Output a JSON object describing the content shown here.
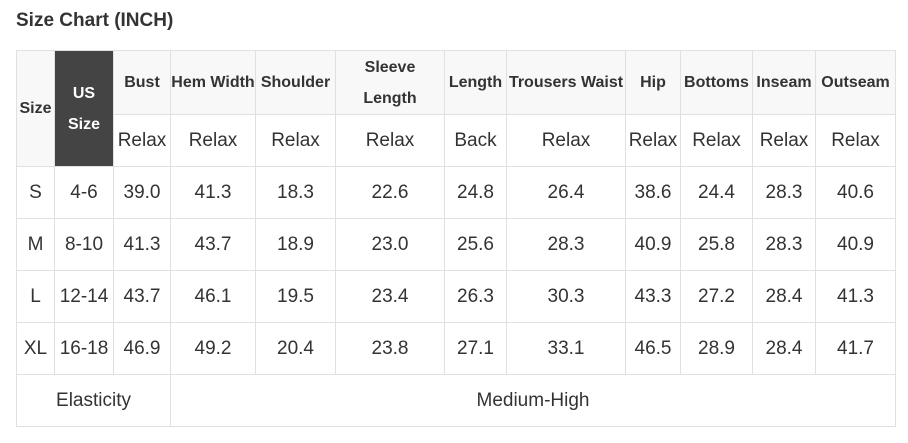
{
  "title": "Size Chart (INCH)",
  "headers": {
    "size": "Size",
    "us_size": "US Size",
    "cols": [
      "Bust",
      "Hem Width",
      "Shoulder",
      "Sleeve Length",
      "Length",
      "Trousers Waist",
      "Hip",
      "Bottoms",
      "Inseam",
      "Outseam"
    ]
  },
  "fit": [
    "Relax",
    "Relax",
    "Relax",
    "Relax",
    "Back",
    "Relax",
    "Relax",
    "Relax",
    "Relax",
    "Relax"
  ],
  "rows": [
    {
      "size": "S",
      "us": "4-6",
      "values": [
        "39.0",
        "41.3",
        "18.3",
        "22.6",
        "24.8",
        "26.4",
        "38.6",
        "24.4",
        "28.3",
        "40.6"
      ]
    },
    {
      "size": "M",
      "us": "8-10",
      "values": [
        "41.3",
        "43.7",
        "18.9",
        "23.0",
        "25.6",
        "28.3",
        "40.9",
        "25.8",
        "28.3",
        "40.9"
      ]
    },
    {
      "size": "L",
      "us": "12-14",
      "values": [
        "43.7",
        "46.1",
        "19.5",
        "23.4",
        "26.3",
        "30.3",
        "43.3",
        "27.2",
        "28.4",
        "41.3"
      ]
    },
    {
      "size": "XL",
      "us": "16-18",
      "values": [
        "46.9",
        "49.2",
        "20.4",
        "23.8",
        "27.1",
        "33.1",
        "46.5",
        "28.9",
        "28.4",
        "41.7"
      ]
    }
  ],
  "elasticity": {
    "label": "Elasticity",
    "value": "Medium-High"
  },
  "colors": {
    "header_bg": "#f8f8f8",
    "us_size_bg": "#444444",
    "border": "#e0e0e0"
  }
}
